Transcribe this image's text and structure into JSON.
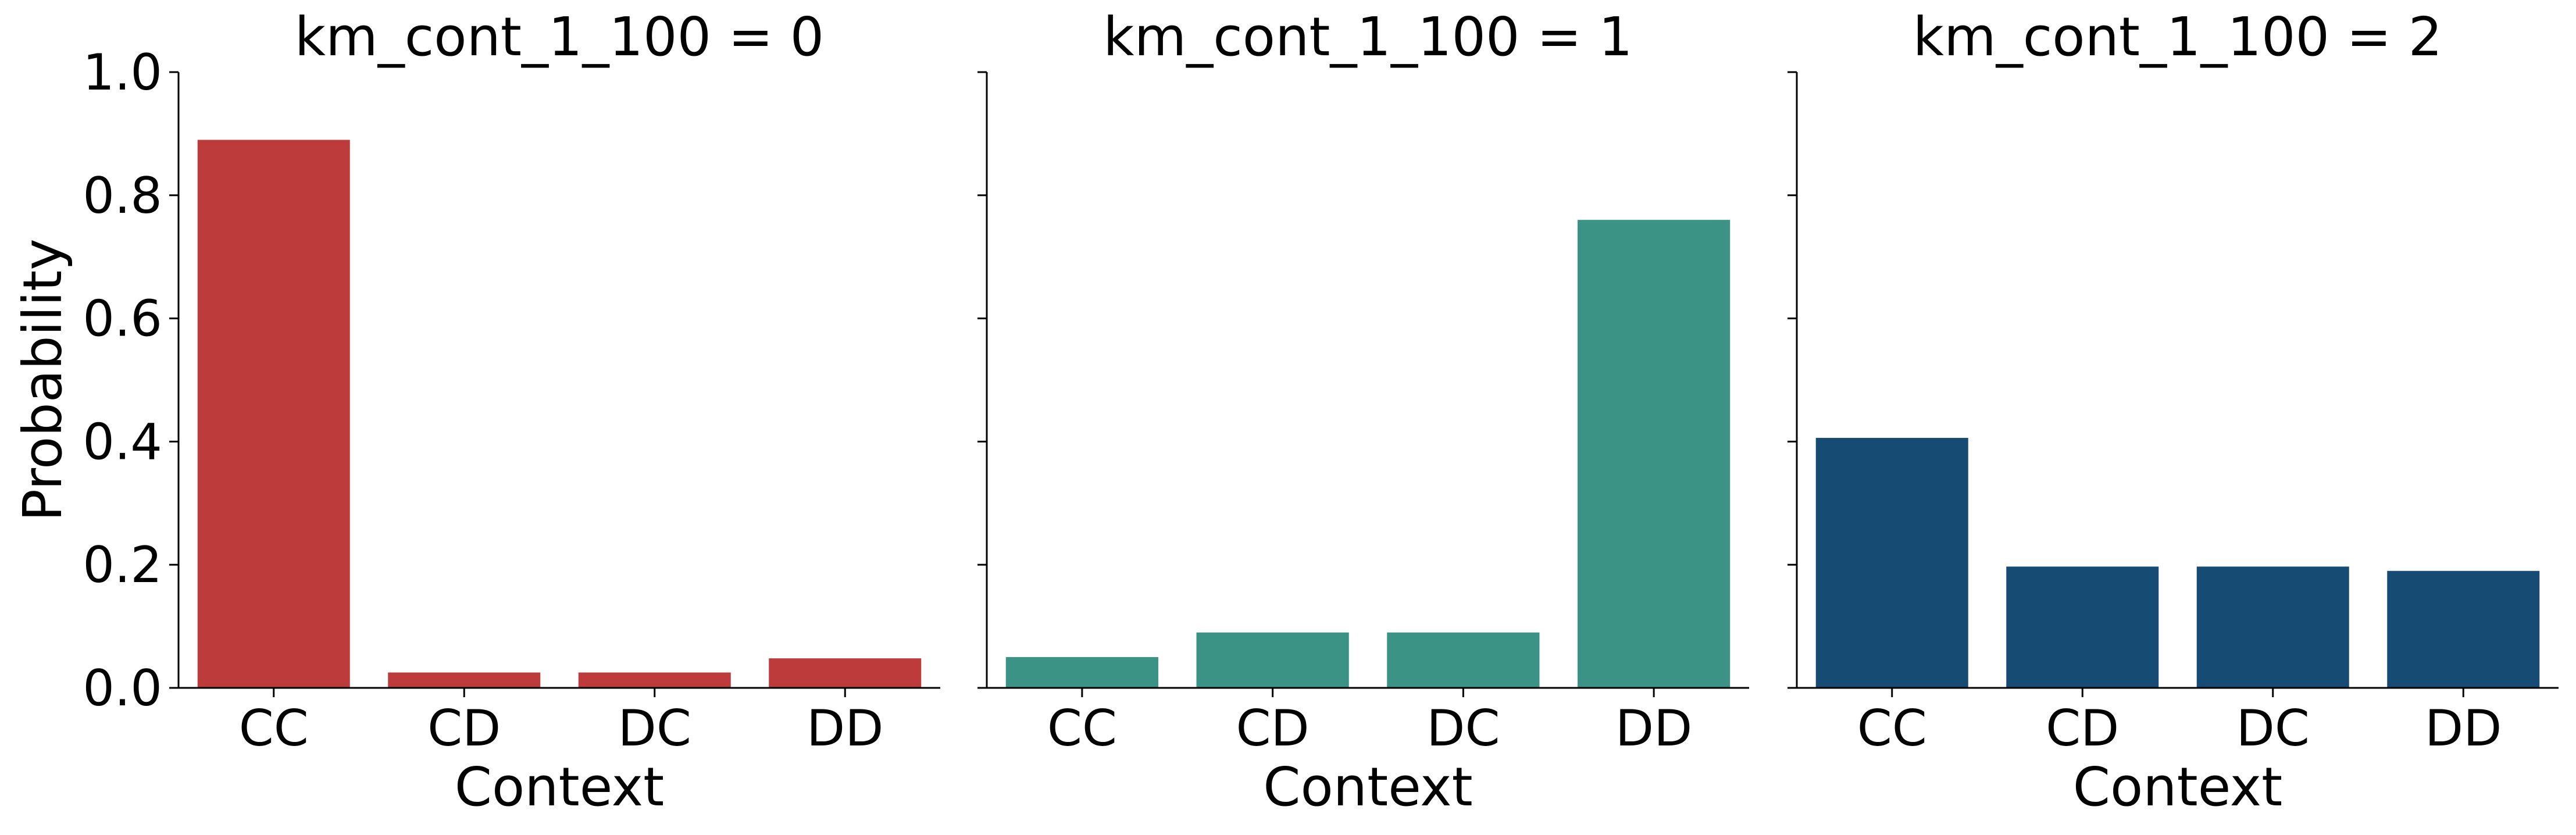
{
  "chart_data": [
    {
      "type": "bar",
      "title": "km_cont_1_100 = 0",
      "xlabel": "Context",
      "ylabel": "Probability",
      "categories": [
        "CC",
        "CD",
        "DC",
        "DD"
      ],
      "values": [
        0.89,
        0.025,
        0.025,
        0.048
      ],
      "color": "#be3b3c",
      "ylim": [
        0,
        1.0
      ],
      "yticks": [
        "0.0",
        "0.2",
        "0.4",
        "0.6",
        "0.8",
        "1.0"
      ],
      "grid": false
    },
    {
      "type": "bar",
      "title": "km_cont_1_100 = 1",
      "xlabel": "Context",
      "ylabel": "",
      "categories": [
        "CC",
        "CD",
        "DC",
        "DD"
      ],
      "values": [
        0.05,
        0.09,
        0.09,
        0.76
      ],
      "color": "#3a9385",
      "ylim": [
        0,
        1.0
      ],
      "yticks": [
        "",
        "",
        "",
        "",
        "",
        ""
      ],
      "grid": false
    },
    {
      "type": "bar",
      "title": "km_cont_1_100 = 2",
      "xlabel": "Context",
      "ylabel": "",
      "categories": [
        "CC",
        "CD",
        "DC",
        "DD"
      ],
      "values": [
        0.406,
        0.197,
        0.197,
        0.19
      ],
      "color": "#164b74",
      "ylim": [
        0,
        1.0
      ],
      "yticks": [
        "",
        "",
        "",
        "",
        "",
        ""
      ],
      "grid": false
    }
  ]
}
